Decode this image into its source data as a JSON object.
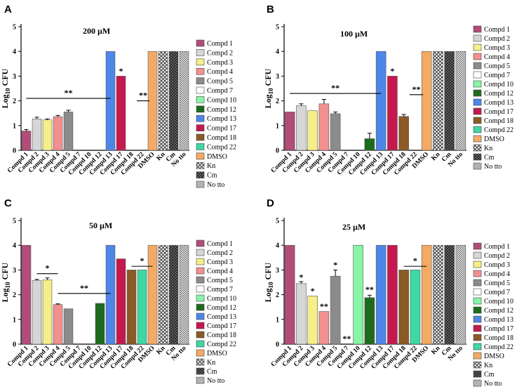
{
  "figure": {
    "compounds": [
      "Compd 1",
      "Compd 2",
      "Compd 3",
      "Compd 4",
      "Compd 5",
      "Compd 7",
      "Compd 10",
      "Compd 12",
      "Compd 13",
      "Compd 17",
      "Compd 18",
      "Compd 22",
      "DMSO",
      "Kn",
      "Cm",
      "No tto"
    ],
    "colors": {
      "Compd 1": "#b24c78",
      "Compd 2": "#d6d6d6",
      "Compd 3": "#f4ef88",
      "Compd 4": "#f2908f",
      "Compd 5": "#8b8b8b",
      "Compd 7": "#ffffff",
      "Compd 10": "#88f5a6",
      "Compd 12": "#1d6b1d",
      "Compd 13": "#4d86e8",
      "Compd 17": "#c6174e",
      "Compd 18": "#8b5a25",
      "Compd 22": "#3ed8a3",
      "DMSO": "#f4aa65",
      "Kn": "#d0d0d0",
      "Cm": "#8c8c8c",
      "No tto": "#e4e4e4"
    },
    "patterns": {
      "Kn": "hatch-cross",
      "Cm": "hatch-dense",
      "No tto": "hatch-fine"
    }
  },
  "chart_data": [
    {
      "panel": "A",
      "type": "bar",
      "title": "200 µM",
      "ylabel": "Log10 CFU",
      "ylim": [
        0,
        5
      ],
      "yticks": [
        0,
        1,
        2,
        3,
        4,
        5
      ],
      "categories": [
        "Compd 1",
        "Compd 2",
        "Compd 3",
        "Compd 4",
        "Compd 5",
        "Compd 7",
        "Compd 10",
        "Compd 12",
        "Compd 13",
        "Compd 17",
        "Compd 18",
        "Compd 22",
        "DMSO",
        "Kn",
        "Cm",
        "No tto"
      ],
      "values": [
        0.78,
        1.27,
        1.23,
        1.36,
        1.55,
        0,
        0,
        0,
        4.0,
        3.0,
        0,
        0,
        4.0,
        4.0,
        4.0,
        4.0
      ],
      "errors": [
        0.06,
        0.07,
        0.04,
        0.05,
        0.07,
        0,
        0,
        0,
        0,
        0,
        0,
        0,
        0,
        0,
        0,
        0
      ],
      "legend": [
        "Compd 1",
        "Compd 2",
        "Compd 3",
        "Compd 4",
        "Compd 5",
        "Compd 7",
        "Compd 10",
        "Compd 12",
        "Compd 13",
        "Compd 17",
        "Compd 18",
        "Compd 22",
        "DMSO",
        "Kn",
        "Cm",
        "No tto"
      ],
      "annotations": [
        {
          "text": "**",
          "line": [
            0.5,
            8.5,
            2.1,
            2.1
          ]
        },
        {
          "text": "**",
          "line": [
            11.0,
            12.2,
            2.0,
            2.0
          ]
        },
        {
          "text": "*",
          "at": [
            10,
            3.1
          ]
        }
      ]
    },
    {
      "panel": "B",
      "type": "bar",
      "title": "100 µM",
      "ylabel": "Log10 CFU",
      "ylim": [
        0,
        5
      ],
      "yticks": [
        0,
        1,
        2,
        3,
        4,
        5
      ],
      "categories": [
        "Compd 1",
        "Compd 2",
        "Compd 3",
        "Compd 4",
        "Compd 5",
        "Compd 7",
        "Compd 10",
        "Compd 12",
        "Compd 13",
        "Compd 17",
        "Compd 18",
        "Compd 22",
        "DMSO",
        "Kn",
        "Cm",
        "No tto"
      ],
      "values": [
        1.55,
        1.8,
        1.6,
        1.88,
        1.48,
        0,
        0,
        0.47,
        4.0,
        3.0,
        1.37,
        0,
        4.0,
        4.0,
        4.0,
        4.0
      ],
      "errors": [
        0,
        0.08,
        0,
        0.18,
        0.07,
        0,
        0,
        0.22,
        0,
        0,
        0.08,
        0,
        0,
        0,
        0,
        0
      ],
      "legend": [
        "Compd 1",
        "Compd 2",
        "Compd 3",
        "Compd 4",
        "Compd 5",
        "Compd 7",
        "Compd 10",
        "Compd 12",
        "Compd 13",
        "Compd 17",
        "Compd 18",
        "Compd 22",
        "DMSO",
        "Kn",
        "Cm",
        "No tto"
      ],
      "annotations": [
        {
          "text": "**",
          "line": [
            0.5,
            8.5,
            2.3,
            2.3
          ]
        },
        {
          "text": "**",
          "line": [
            11.0,
            12.2,
            2.25,
            2.25
          ]
        },
        {
          "text": "*",
          "at": [
            10,
            3.1
          ]
        }
      ]
    },
    {
      "panel": "C",
      "type": "bar",
      "title": "50 µM",
      "ylabel": "Log10 CFU",
      "ylim": [
        0,
        5
      ],
      "yticks": [
        0,
        1,
        2,
        3,
        4,
        5
      ],
      "categories": [
        "Compd 1",
        "Compd 2",
        "Compd 3",
        "Compd 4",
        "Compd 5",
        "Compd 7",
        "Compd 10",
        "Compd 12",
        "Compd 13",
        "Compd 17",
        "Compd 18",
        "Compd 22",
        "DMSO",
        "Kn",
        "Cm",
        "No tto"
      ],
      "values": [
        4.0,
        2.58,
        2.6,
        1.6,
        1.43,
        0,
        0,
        1.65,
        4.0,
        3.45,
        3.0,
        3.0,
        4.0,
        4.0,
        4.0,
        4.0
      ],
      "errors": [
        0,
        0.04,
        0.08,
        0.03,
        0,
        0,
        0,
        0,
        0,
        0,
        0,
        0,
        0,
        0,
        0,
        0
      ],
      "legend": [
        "Compd 1",
        "Compd 2",
        "Compd 3",
        "Compd 4",
        "Compd 5",
        "Compd 7",
        "Compd 10",
        "Compd 12",
        "Compd 13",
        "Compd 17",
        "Compd 18",
        "Compd 22",
        "DMSO",
        "Kn",
        "Cm",
        "No tto"
      ],
      "annotations": [
        {
          "text": "*",
          "line": [
            1.5,
            3.5,
            2.85,
            2.85
          ]
        },
        {
          "text": "**",
          "line": [
            3.5,
            8.5,
            2.05,
            2.05
          ]
        },
        {
          "text": "*",
          "line": [
            10.5,
            12.5,
            3.15,
            3.15
          ]
        }
      ]
    },
    {
      "panel": "D",
      "type": "bar",
      "title": "25 µM",
      "ylabel": "Log10 CFU",
      "ylim": [
        0,
        5
      ],
      "yticks": [
        0,
        1,
        2,
        3,
        4,
        5
      ],
      "categories": [
        "Compd 1",
        "Compd 2",
        "Compd 3",
        "Compd 4",
        "Compd 5",
        "Compd 7",
        "Compd 10",
        "Compd 12",
        "Compd 13",
        "Compd 17",
        "Compd 18",
        "Compd 22",
        "DMSO",
        "Kn",
        "Cm",
        "No tto"
      ],
      "values": [
        4.0,
        2.45,
        1.95,
        1.32,
        2.75,
        0,
        4.0,
        1.88,
        4.0,
        4.0,
        3.0,
        3.0,
        4.0,
        4.0,
        4.0,
        4.0
      ],
      "errors": [
        0,
        0.08,
        0,
        0,
        0.25,
        0,
        0,
        0.1,
        0,
        0,
        0,
        0,
        0,
        0,
        0,
        0
      ],
      "legend": [
        "Compd 1",
        "Compd 2",
        "Compd 3",
        "Compd 4",
        "Compd 5",
        "Compd 7",
        "Compd 10",
        "Compd 12",
        "Compd 13",
        "Compd 17",
        "Compd 18",
        "Compd 22",
        "DMSO",
        "Kn",
        "Cm",
        "No tto"
      ],
      "annotations": [
        {
          "text": "*",
          "at": [
            2,
            2.6
          ]
        },
        {
          "text": "*",
          "at": [
            3,
            2.05
          ]
        },
        {
          "text": "**",
          "at": [
            4,
            1.42
          ]
        },
        {
          "text": "*",
          "at": [
            5,
            3.1
          ]
        },
        {
          "text": "**",
          "at": [
            6,
            0.12
          ]
        },
        {
          "text": "**",
          "at": [
            8,
            2.1
          ]
        },
        {
          "text": "*",
          "line": [
            10.5,
            12.5,
            3.15,
            3.15
          ]
        }
      ]
    }
  ]
}
